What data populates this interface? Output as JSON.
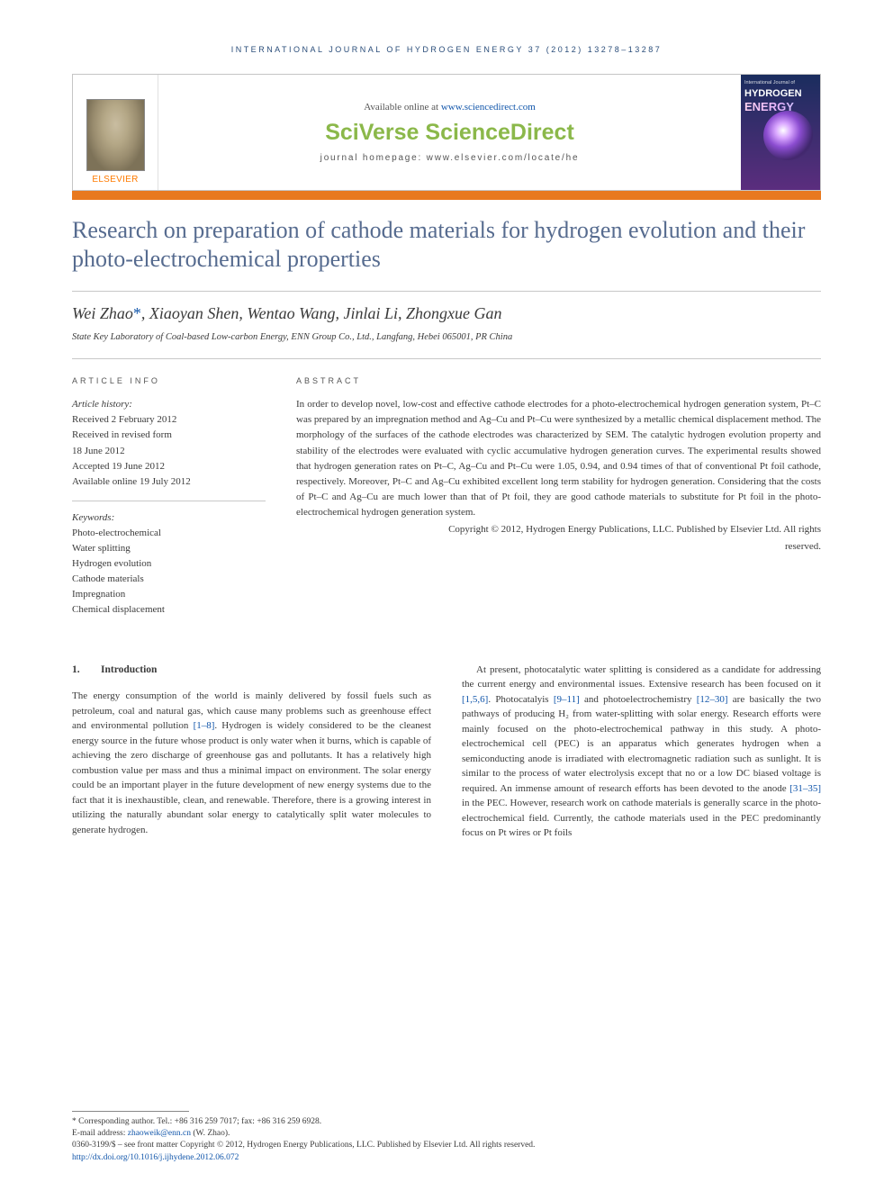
{
  "running_head": "INTERNATIONAL JOURNAL OF HYDROGEN ENERGY 37 (2012) 13278–13287",
  "header": {
    "available_prefix": "Available online at ",
    "available_link": "www.sciencedirect.com",
    "brand": "SciVerse ScienceDirect",
    "homepage": "journal homepage: www.elsevier.com/locate/he",
    "elsevier": "ELSEVIER",
    "cover": {
      "top": "International Journal of",
      "h": "HYDROGEN",
      "e": "ENERGY"
    }
  },
  "title": "Research on preparation of cathode materials for hydrogen evolution and their photo-electrochemical properties",
  "authors": "Wei Zhao*, Xiaoyan Shen, Wentao Wang, Jinlai Li, Zhongxue Gan",
  "affiliation": "State Key Laboratory of Coal-based Low-carbon Energy, ENN Group Co., Ltd., Langfang, Hebei 065001, PR China",
  "info": {
    "left_h": "ARTICLE INFO",
    "right_h": "ABSTRACT",
    "history_label": "Article history:",
    "history": [
      "Received 2 February 2012",
      "Received in revised form",
      "18 June 2012",
      "Accepted 19 June 2012",
      "Available online 19 July 2012"
    ],
    "kw_label": "Keywords:",
    "keywords": [
      "Photo-electrochemical",
      "Water splitting",
      "Hydrogen evolution",
      "Cathode materials",
      "Impregnation",
      "Chemical displacement"
    ],
    "abstract": "In order to develop novel, low-cost and effective cathode electrodes for a photo-electrochemical hydrogen generation system, Pt–C was prepared by an impregnation method and Ag–Cu and Pt–Cu were synthesized by a metallic chemical displacement method. The morphology of the surfaces of the cathode electrodes was characterized by SEM. The catalytic hydrogen evolution property and stability of the electrodes were evaluated with cyclic accumulative hydrogen generation curves. The experimental results showed that hydrogen generation rates on Pt–C, Ag–Cu and Pt–Cu were 1.05, 0.94, and 0.94 times of that of conventional Pt foil cathode, respectively. Moreover, Pt–C and Ag–Cu exhibited excellent long term stability for hydrogen generation. Considering that the costs of Pt–C and Ag–Cu are much lower than that of Pt foil, they are good cathode materials to substitute for Pt foil in the photo-electrochemical hydrogen generation system.",
    "copyright1": "Copyright © 2012, Hydrogen Energy Publications, LLC. Published by Elsevier Ltd. All rights",
    "copyright2": "reserved."
  },
  "section": {
    "num": "1.",
    "title": "Introduction"
  },
  "col1": {
    "p1a": "The energy consumption of the world is mainly delivered by fossil fuels such as petroleum, coal and natural gas, which cause many problems such as greenhouse effect and environmental pollution ",
    "p1link": "[1–8]",
    "p1b": ". Hydrogen is widely considered to be the cleanest energy source in the future whose product is only water when it burns, which is capable of achieving the zero discharge of greenhouse gas and pollutants. It has a relatively high combustion value per mass and thus a minimal impact on environment. The solar energy could be an important player in the future development of new energy systems due to the fact that it is inexhaustible, clean, and renewable. Therefore, there is a growing interest in utilizing the naturally abundant solar energy to catalytically split water molecules to generate hydrogen."
  },
  "col2": {
    "p1a": "At present, photocatalytic water splitting is considered as a candidate for addressing the current energy and environmental issues. Extensive research has been focused on it ",
    "l1": "[1,5,6]",
    "p1b": ". Photocatalyis ",
    "l2": "[9–11]",
    "p1c": " and photoelectrochemistry ",
    "l3": "[12–30]",
    "p1d": " are basically the two pathways of producing H₂ from water-splitting with solar energy. Research efforts were mainly focused on the photo-electrochemical pathway in this study. A photo-electrochemical cell (PEC) is an apparatus which generates hydrogen when a semiconducting anode is irradiated with electromagnetic radiation such as sunlight. It is similar to the process of water electrolysis except that no or a low DC biased voltage is required. An immense amount of research efforts has been devoted to the anode ",
    "l4": "[31–35]",
    "p1e": " in the PEC. However, research work on cathode materials is generally scarce in the photo-electrochemical field. Currently, the cathode materials used in the PEC predominantly focus on Pt wires or Pt foils"
  },
  "footer": {
    "corr": "* Corresponding author. Tel.: +86 316 259 7017; fax: +86 316 259 6928.",
    "email_label": "E-mail address: ",
    "email": "zhaoweik@enn.cn",
    "email_tail": " (W. Zhao).",
    "line1": "0360-3199/$ – see front matter Copyright © 2012, Hydrogen Energy Publications, LLC. Published by Elsevier Ltd. All rights reserved.",
    "doi": "http://dx.doi.org/10.1016/j.ijhydene.2012.06.072"
  }
}
